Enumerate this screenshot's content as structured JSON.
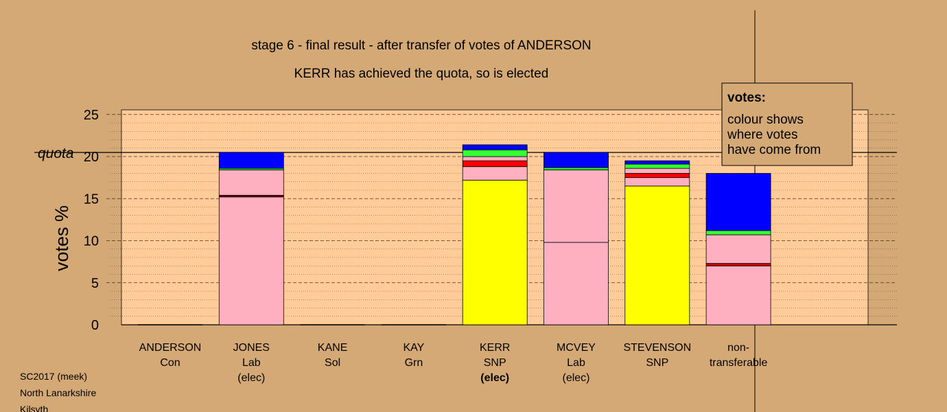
{
  "chart_data": {
    "type": "bar",
    "stacked": true,
    "title": "stage 6 - final result - after transfer of votes of ANDERSON",
    "subtitle": "KERR has achieved the quota, so is elected",
    "ylabel": "votes %",
    "ylim": [
      0,
      25
    ],
    "yticks": [
      "0",
      "5",
      "10",
      "15",
      "20",
      "25"
    ],
    "quota": {
      "label": "quota",
      "value": 20.4
    },
    "grid": true,
    "categories": [
      {
        "name": "ANDERSON",
        "party": "Con",
        "status": ""
      },
      {
        "name": "JONES",
        "party": "Lab",
        "status": "(elec)"
      },
      {
        "name": "KANE",
        "party": "Sol",
        "status": ""
      },
      {
        "name": "KAY",
        "party": "Grn",
        "status": ""
      },
      {
        "name": "KERR",
        "party": "SNP",
        "status": "(elec)"
      },
      {
        "name": "MCVEY",
        "party": "Lab",
        "status": "(elec)"
      },
      {
        "name": "STEVENSON",
        "party": "SNP",
        "status": ""
      },
      {
        "name": "non-",
        "party": "transferable",
        "status": ""
      }
    ],
    "bars": [
      {
        "slot": 0,
        "segments": []
      },
      {
        "slot": 1,
        "segments": [
          {
            "value": 15.2,
            "color": "#ffb0c0"
          },
          {
            "value": 0.2,
            "color": "#800000"
          },
          {
            "value": 3.0,
            "color": "#ffb0c0"
          },
          {
            "value": 0.2,
            "color": "#33dd33"
          },
          {
            "value": 1.9,
            "color": "#0000ff"
          }
        ]
      },
      {
        "slot": 2,
        "segments": []
      },
      {
        "slot": 3,
        "segments": []
      },
      {
        "slot": 4,
        "segments": [
          {
            "value": 17.2,
            "color": "#ffff00"
          },
          {
            "value": 1.6,
            "color": "#ffb0c0"
          },
          {
            "value": 0.7,
            "color": "#ff0000"
          },
          {
            "value": 0.5,
            "color": "#ffb0c0"
          },
          {
            "value": 0.8,
            "color": "#33ff33"
          },
          {
            "value": 0.6,
            "color": "#0000ff"
          }
        ]
      },
      {
        "slot": 5,
        "segments": [
          {
            "value": 9.8,
            "color": "#ffb0c0"
          },
          {
            "value": 8.6,
            "color": "#ffb0c0"
          },
          {
            "value": 0.3,
            "color": "#33dd33"
          },
          {
            "value": 1.8,
            "color": "#0000ff"
          }
        ]
      },
      {
        "slot": 6,
        "segments": [
          {
            "value": 16.5,
            "color": "#ffff00"
          },
          {
            "value": 1.0,
            "color": "#ffb0c0"
          },
          {
            "value": 0.5,
            "color": "#ff0000"
          },
          {
            "value": 0.6,
            "color": "#ffb0c0"
          },
          {
            "value": 0.5,
            "color": "#33ff33"
          },
          {
            "value": 0.4,
            "color": "#0000ff"
          }
        ]
      },
      {
        "slot": 7,
        "segments": [
          {
            "value": 7.0,
            "color": "#ffb0c0"
          },
          {
            "value": 0.3,
            "color": "#cc0000"
          },
          {
            "value": 3.4,
            "color": "#ffb0c0"
          },
          {
            "value": 0.5,
            "color": "#33ff33"
          },
          {
            "value": 6.8,
            "color": "#0000ff"
          }
        ]
      }
    ],
    "legend": {
      "title": "votes:",
      "lines": [
        "colour shows",
        "where votes",
        "have come from"
      ],
      "placement": "top-right"
    }
  },
  "footer": {
    "lines": [
      "SC2017 (meek)",
      "North Lanarkshire",
      "Kilsyth"
    ]
  },
  "colors": {
    "page_background": "#d4a976",
    "plot_background": "#ffcc99",
    "quota_line": "#000000"
  }
}
